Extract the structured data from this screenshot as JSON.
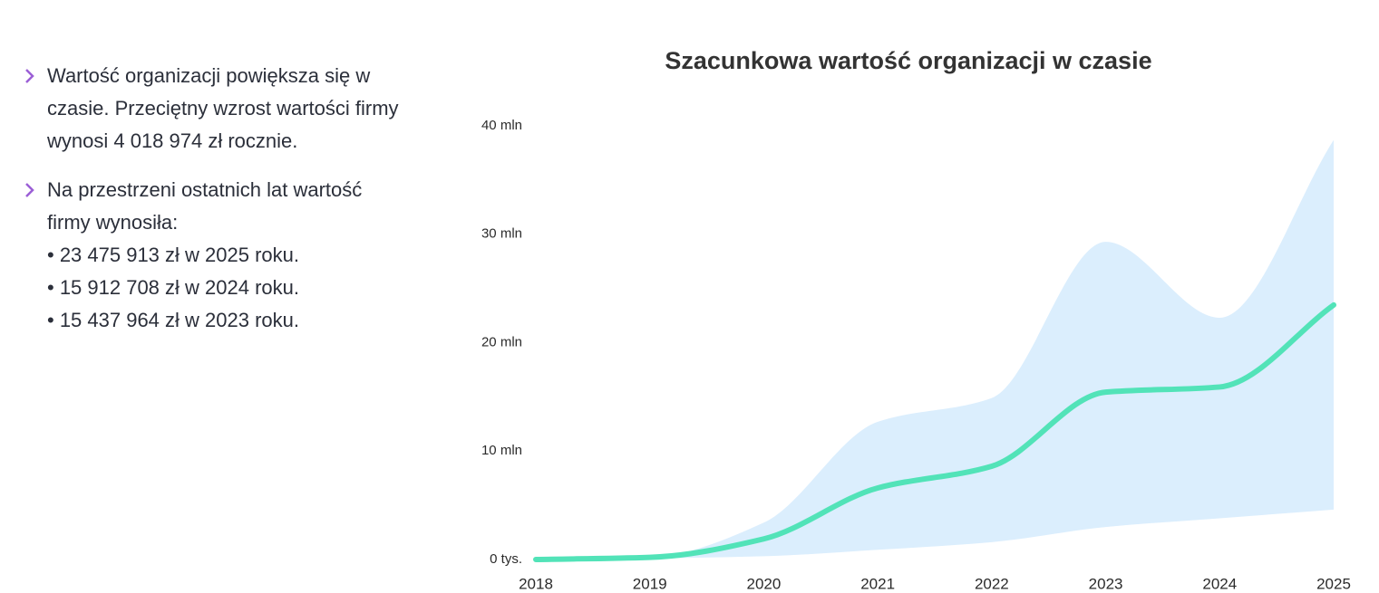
{
  "text_panel": {
    "items": [
      {
        "text": "Wartość organizacji powiększa się w czasie. Przeciętny wzrost wartości firmy wynosi 4 018 974 zł rocznie.",
        "sub": []
      },
      {
        "text": "Na przestrzeni ostatnich lat wartość firmy wynosiła:",
        "sub": [
          "• 23 475 913 zł w 2025 roku.",
          "• 15 912 708 zł w 2024 roku.",
          "• 15 437 964 zł w 2023 roku."
        ]
      }
    ]
  },
  "chart_data": {
    "type": "line",
    "title": "Szacunkowa wartość organizacji w czasie",
    "x": [
      2018,
      2019,
      2020,
      2021,
      2022,
      2023,
      2024,
      2025
    ],
    "series": [
      {
        "color": "#52e3b8",
        "values": [
          0,
          200000,
          1900000,
          6600000,
          8600000,
          15437964,
          15912708,
          23475913
        ]
      }
    ],
    "band": {
      "color": "#dbeefd",
      "upper": [
        0,
        200000,
        3400000,
        12700000,
        14900000,
        29300000,
        22300000,
        38700000
      ],
      "lower": [
        0,
        100000,
        300000,
        900000,
        1600000,
        3000000,
        3800000,
        4600000
      ]
    },
    "xlim": [
      2018,
      2025
    ],
    "xticks": [
      2018,
      2019,
      2020,
      2021,
      2022,
      2023,
      2024,
      2025
    ],
    "ylim": [
      0,
      40000000
    ],
    "yticks": [
      {
        "value": 0,
        "label": "0 tys."
      },
      {
        "value": 10000000,
        "label": "10 mln"
      },
      {
        "value": 20000000,
        "label": "20 mln"
      },
      {
        "value": 30000000,
        "label": "30 mln"
      },
      {
        "value": 40000000,
        "label": "40 mln"
      }
    ],
    "grid": false
  }
}
